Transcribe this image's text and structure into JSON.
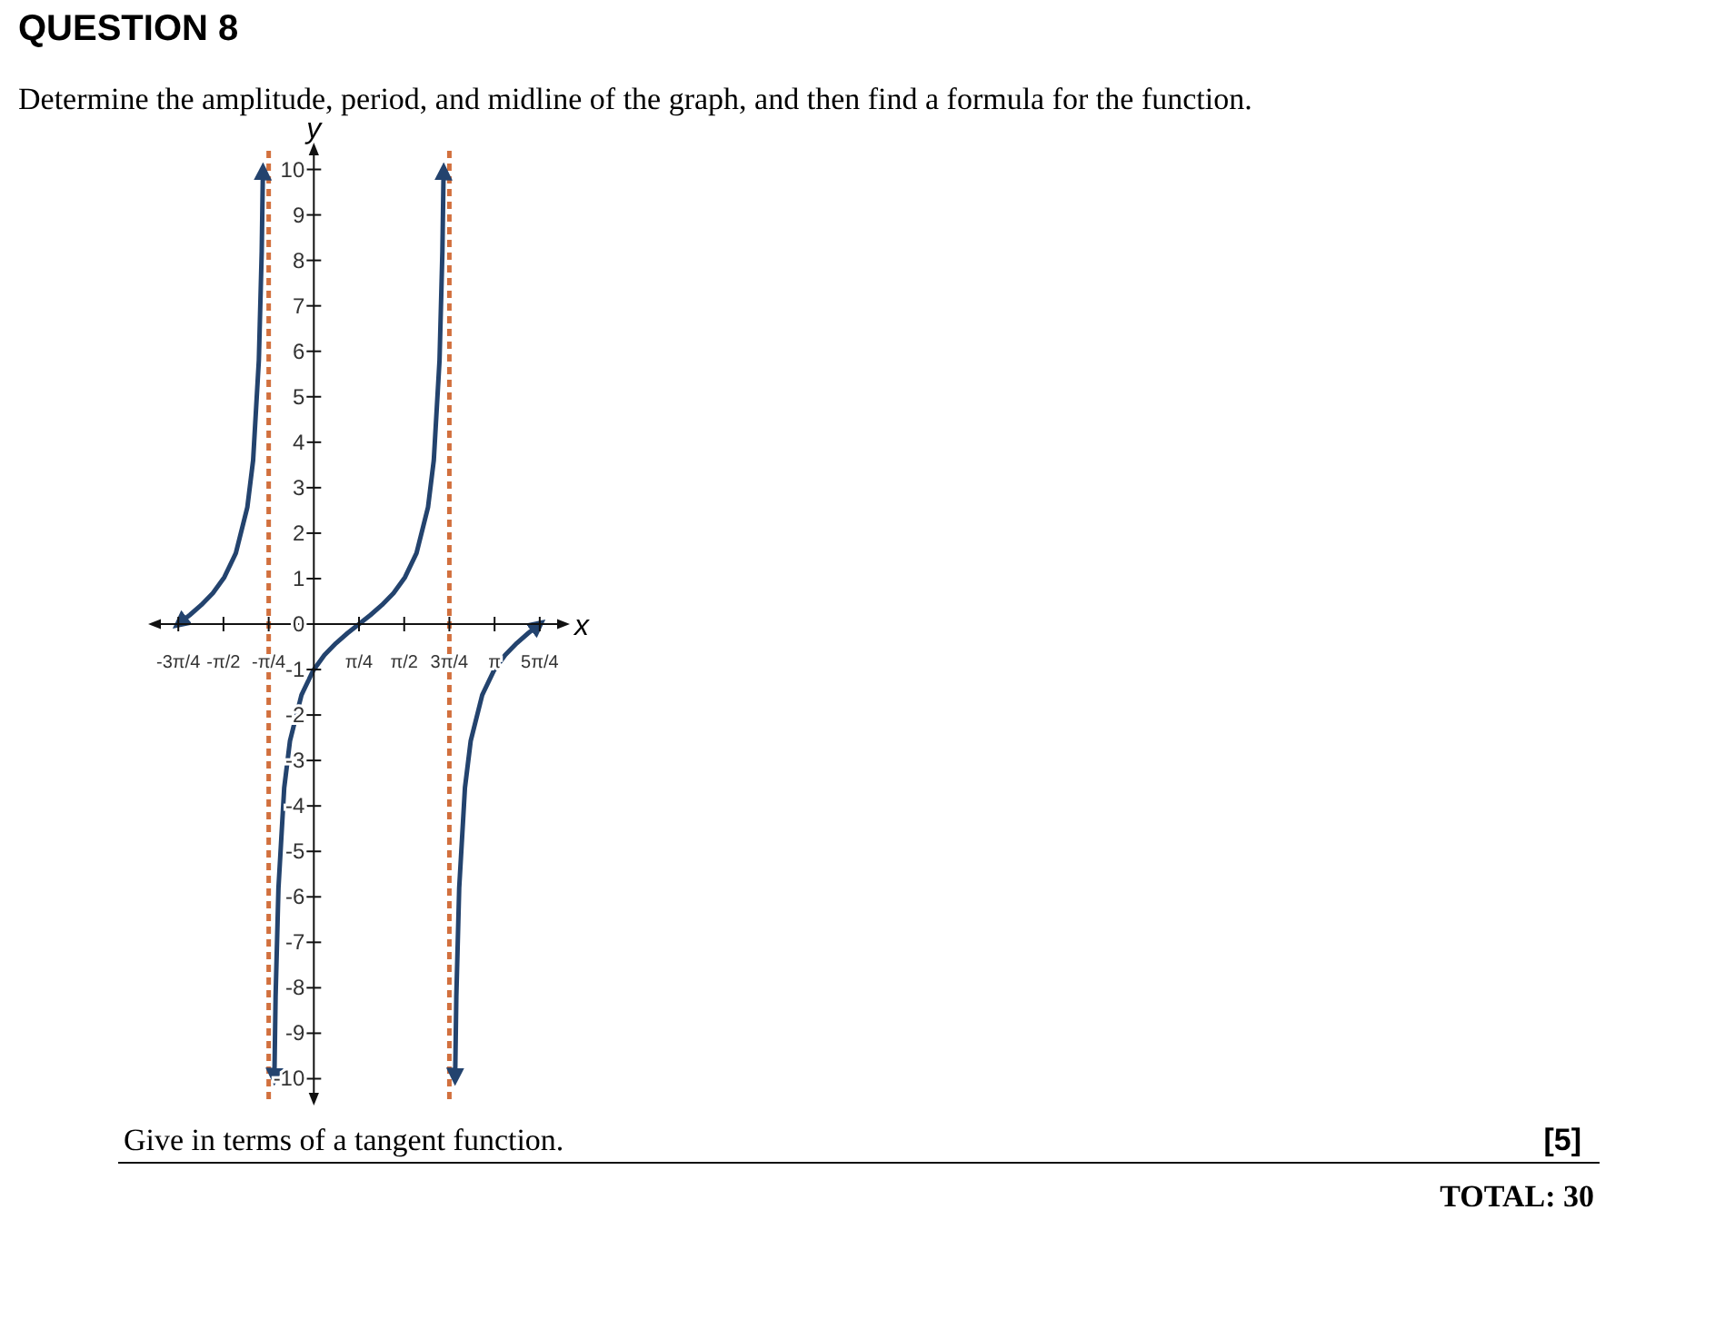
{
  "chart_data": {
    "type": "line",
    "title": "QUESTION 8",
    "subtitle": "Determine the amplitude, period, and midline of the graph, and then find a formula for the function.",
    "xlabel": "x",
    "ylabel": "y",
    "xlim": [
      -2.77,
      4.34
    ],
    "ylim": [
      -10.45,
      10.45
    ],
    "xticks": [
      {
        "value": -2.356,
        "label": "-3π/4"
      },
      {
        "value": -1.571,
        "label": "-π/2"
      },
      {
        "value": -0.785,
        "label": "-π/4"
      },
      {
        "value": 0.785,
        "label": "π/4"
      },
      {
        "value": 1.571,
        "label": "π/2"
      },
      {
        "value": 2.356,
        "label": "3π/4"
      },
      {
        "value": 3.142,
        "label": "π"
      },
      {
        "value": 3.927,
        "label": "5π/4"
      }
    ],
    "yticks": [
      -10,
      -9,
      -8,
      -7,
      -6,
      -5,
      -4,
      -3,
      -2,
      -1,
      0,
      1,
      2,
      3,
      4,
      5,
      6,
      7,
      8,
      9,
      10
    ],
    "series": [
      {
        "color": "#23436e",
        "x": [
          -2.356,
          -2.156,
          -1.956,
          -1.756,
          -1.556,
          -1.356,
          -1.156,
          -1.056,
          -0.956,
          -0.906,
          -0.885
        ],
        "values": [
          0,
          0.2,
          0.42,
          0.68,
          1.03,
          1.56,
          2.57,
          3.6,
          5.8,
          8.2,
          10
        ]
      },
      {
        "color": "#23436e",
        "x": [
          -0.686,
          -0.665,
          -0.615,
          -0.515,
          -0.415,
          -0.215,
          -0.015,
          0.185,
          0.385,
          0.585,
          0.785,
          0.985,
          1.185,
          1.385,
          1.585,
          1.785,
          1.985,
          2.085,
          2.185,
          2.235,
          2.256
        ],
        "values": [
          -10,
          -8.2,
          -5.8,
          -3.6,
          -2.57,
          -1.56,
          -1.03,
          -0.68,
          -0.42,
          -0.2,
          0,
          0.2,
          0.42,
          0.68,
          1.03,
          1.56,
          2.57,
          3.6,
          5.8,
          8.2,
          10
        ]
      },
      {
        "color": "#23436e",
        "x": [
          2.456,
          2.477,
          2.527,
          2.627,
          2.727,
          2.927,
          3.127,
          3.327,
          3.527,
          3.727,
          3.927
        ],
        "values": [
          -10,
          -8.2,
          -5.8,
          -3.6,
          -2.57,
          -1.56,
          -1.03,
          -0.68,
          -0.42,
          -0.2,
          0
        ]
      }
    ],
    "marker": "none",
    "line_style": "solid",
    "grid": false,
    "ref_lines": [
      {
        "axis": "x",
        "value": -0.785,
        "color": "#d2703e",
        "line_style": "dashed"
      },
      {
        "axis": "x",
        "value": 2.356,
        "color": "#d2703e",
        "line_style": "dashed"
      }
    ],
    "annotations": [
      "Give in terms of a tangent function.",
      "[5]",
      "TOTAL: 30"
    ]
  }
}
